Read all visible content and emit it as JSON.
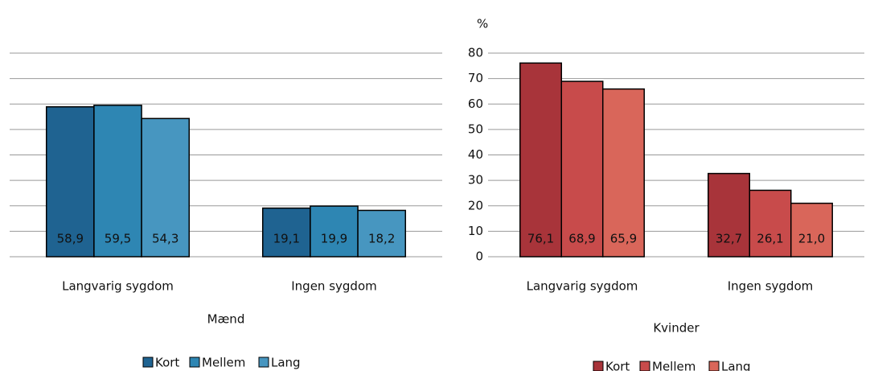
{
  "chart_data": [
    {
      "type": "bar",
      "title": "Mænd",
      "categories": [
        "Langvarig sygdom",
        "Ingen sygdom"
      ],
      "series": [
        {
          "name": "Kort",
          "color": "#1f6391",
          "values": [
            58.9,
            19.1
          ],
          "value_labels": [
            "58,9",
            "19,1"
          ]
        },
        {
          "name": "Mellem",
          "color": "#2e86b3",
          "values": [
            59.5,
            19.9
          ],
          "value_labels": [
            "59,5",
            "19,9"
          ]
        },
        {
          "name": "Lang",
          "color": "#4796c0",
          "values": [
            54.3,
            18.2
          ],
          "value_labels": [
            "54,3",
            "18,2"
          ]
        }
      ],
      "ylim": [
        0,
        80
      ],
      "yticks": [
        0,
        10,
        20,
        30,
        40,
        50,
        60,
        70,
        80
      ],
      "grid": true
    },
    {
      "type": "bar",
      "title": "Kvinder",
      "ylabel": "%",
      "categories": [
        "Langvarig sygdom",
        "Ingen sygdom"
      ],
      "series": [
        {
          "name": "Kort",
          "color": "#a8343a",
          "values": [
            76.1,
            32.7
          ],
          "value_labels": [
            "76,1",
            "32,7"
          ]
        },
        {
          "name": "Mellem",
          "color": "#c84b4b",
          "values": [
            68.9,
            26.1
          ],
          "value_labels": [
            "68,9",
            "26,1"
          ]
        },
        {
          "name": "Lang",
          "color": "#d9665a",
          "values": [
            65.9,
            21.0
          ],
          "value_labels": [
            "65,9",
            "21,0"
          ]
        }
      ],
      "ylim": [
        0,
        80
      ],
      "yticks": [
        0,
        10,
        20,
        30,
        40,
        50,
        60,
        70,
        80
      ],
      "grid": true,
      "tick_labels": true
    }
  ]
}
